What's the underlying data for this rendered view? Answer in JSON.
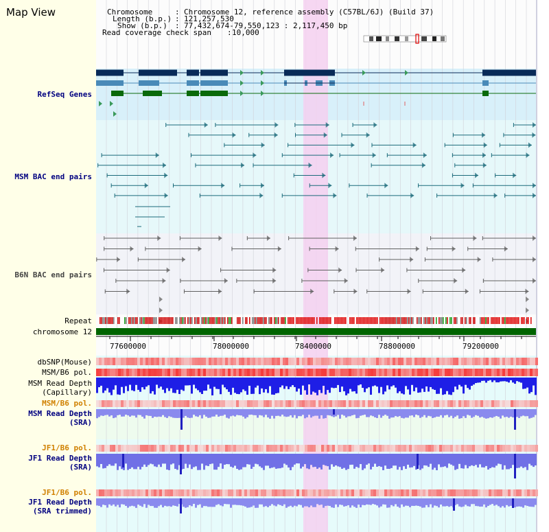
{
  "title": "Map View",
  "info": {
    "chromosome_label": "Chromosome",
    "chromosome_value": "Chromosome 12, reference assembly (C57BL/6J) (Build 37)",
    "length_label": "Length (b.p.)",
    "length_value": "121,257,530",
    "show_label": "Show (b.p.)",
    "show_value": "77,432,674-79,550,123 : 2,117,450 bp",
    "coverage_label": "Read coverage check span",
    "coverage_value": "10,000"
  },
  "tracks": {
    "refseq": "RefSeq Genes",
    "msm_bac": "MSM BAC end pairs",
    "b6n_bac": "B6N BAC end pairs",
    "repeat": "Repeat",
    "chromosome": "chromosome 12",
    "dbsnp": "dbSNP(Mouse)",
    "msm_b6_pol_1": "MSM/B6 pol.",
    "msm_depth_cap_1": "MSM Read Depth",
    "msm_depth_cap_2": "(Capillary)",
    "msm_b6_pol_2": "MSM/B6 pol.",
    "msm_depth_sra_1": "MSM Read Depth",
    "msm_depth_sra_2": "(SRA)",
    "jf1_b6_pol_1": "JF1/B6 pol.",
    "jf1_depth_sra_1": "JF1 Read Depth",
    "jf1_depth_sra_2": "(SRA)",
    "jf1_b6_pol_2": "JF1/B6 pol.",
    "jf1_depth_trim_1": "JF1 Read Depth",
    "jf1_depth_trim_2": "(SRA trimmed)"
  },
  "axis": {
    "ticks": [
      "77600000",
      "78000000",
      "78400000",
      "78800000",
      "79200000"
    ]
  },
  "colors": {
    "background": "#ffffe8",
    "refseq_bg": "#d8f0fa",
    "navy": "#000080",
    "highlight": "#f5d0f0",
    "chromosome_bar": "#006400",
    "depth_blue": "#2020e0",
    "depth_light": "#8888f0"
  }
}
